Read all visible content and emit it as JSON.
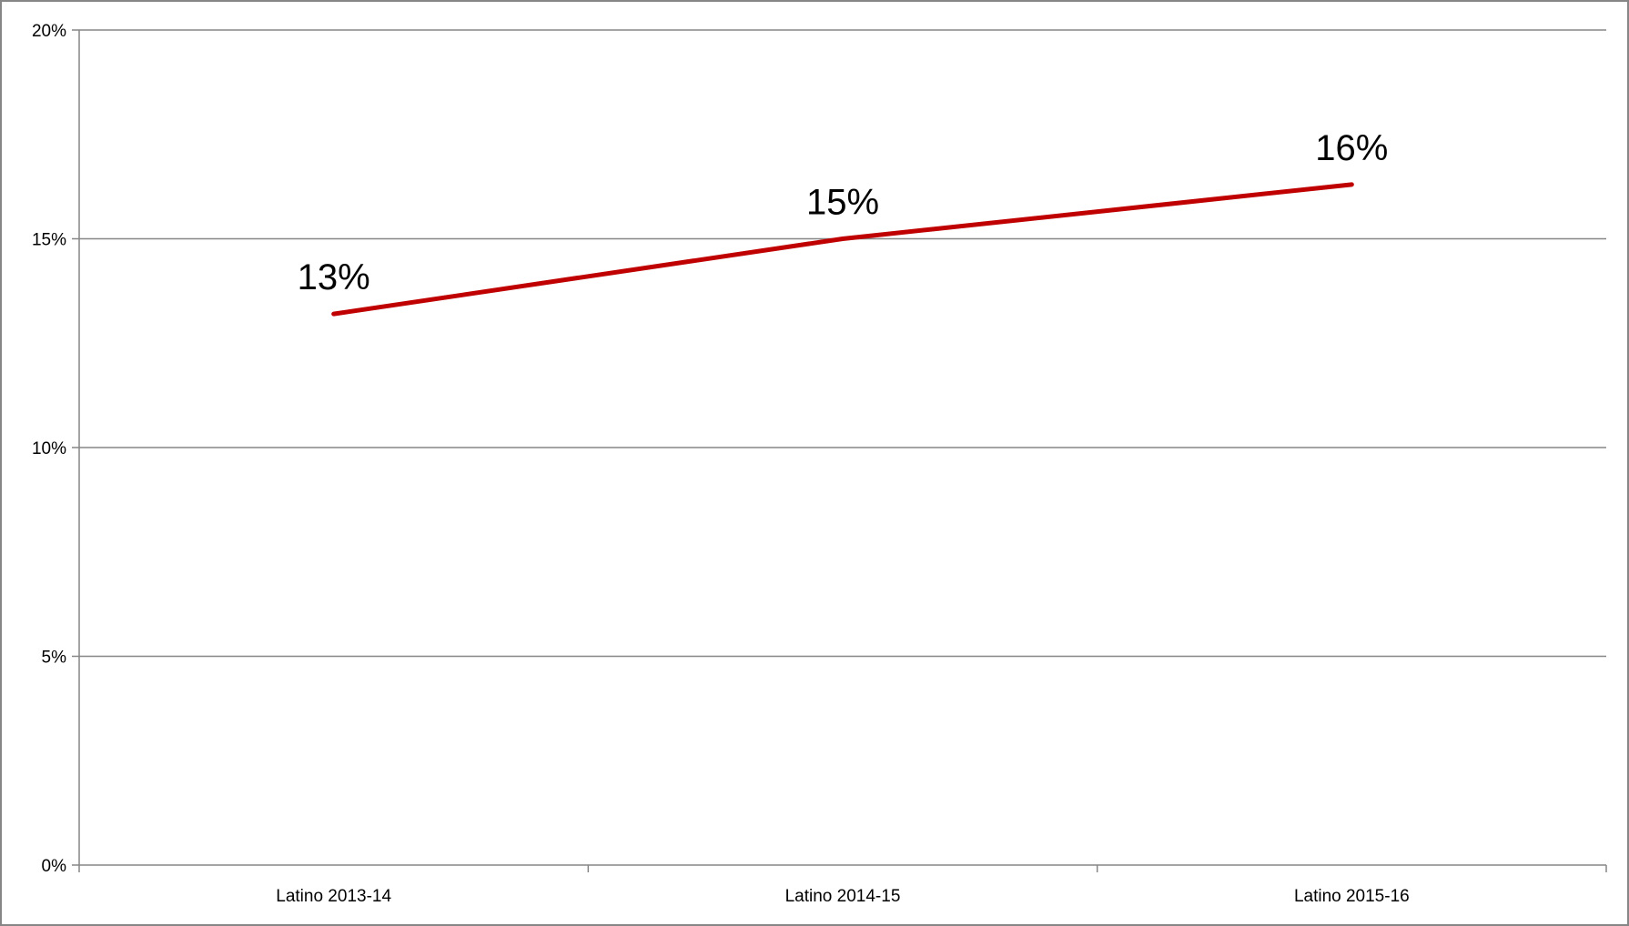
{
  "chart_data": {
    "type": "line",
    "categories": [
      "Latino 2013-14",
      "Latino 2014-15",
      "Latino 2015-16"
    ],
    "series": [
      {
        "values": [
          13.2,
          15.0,
          16.3
        ],
        "color": "#c00000",
        "data_labels": [
          "13%",
          "15%",
          "16%"
        ]
      }
    ],
    "ylim": [
      0,
      20
    ],
    "yticks": [
      0,
      5,
      10,
      15,
      20
    ],
    "ytick_labels": [
      "0%",
      "5%",
      "10%",
      "15%",
      "20%"
    ],
    "grid": true,
    "legend": "none",
    "title": "",
    "xlabel": "",
    "ylabel": ""
  },
  "colors": {
    "series_line": "#c00000",
    "gridline": "#868686",
    "axis": "#868686",
    "frame_border": "#868686"
  }
}
